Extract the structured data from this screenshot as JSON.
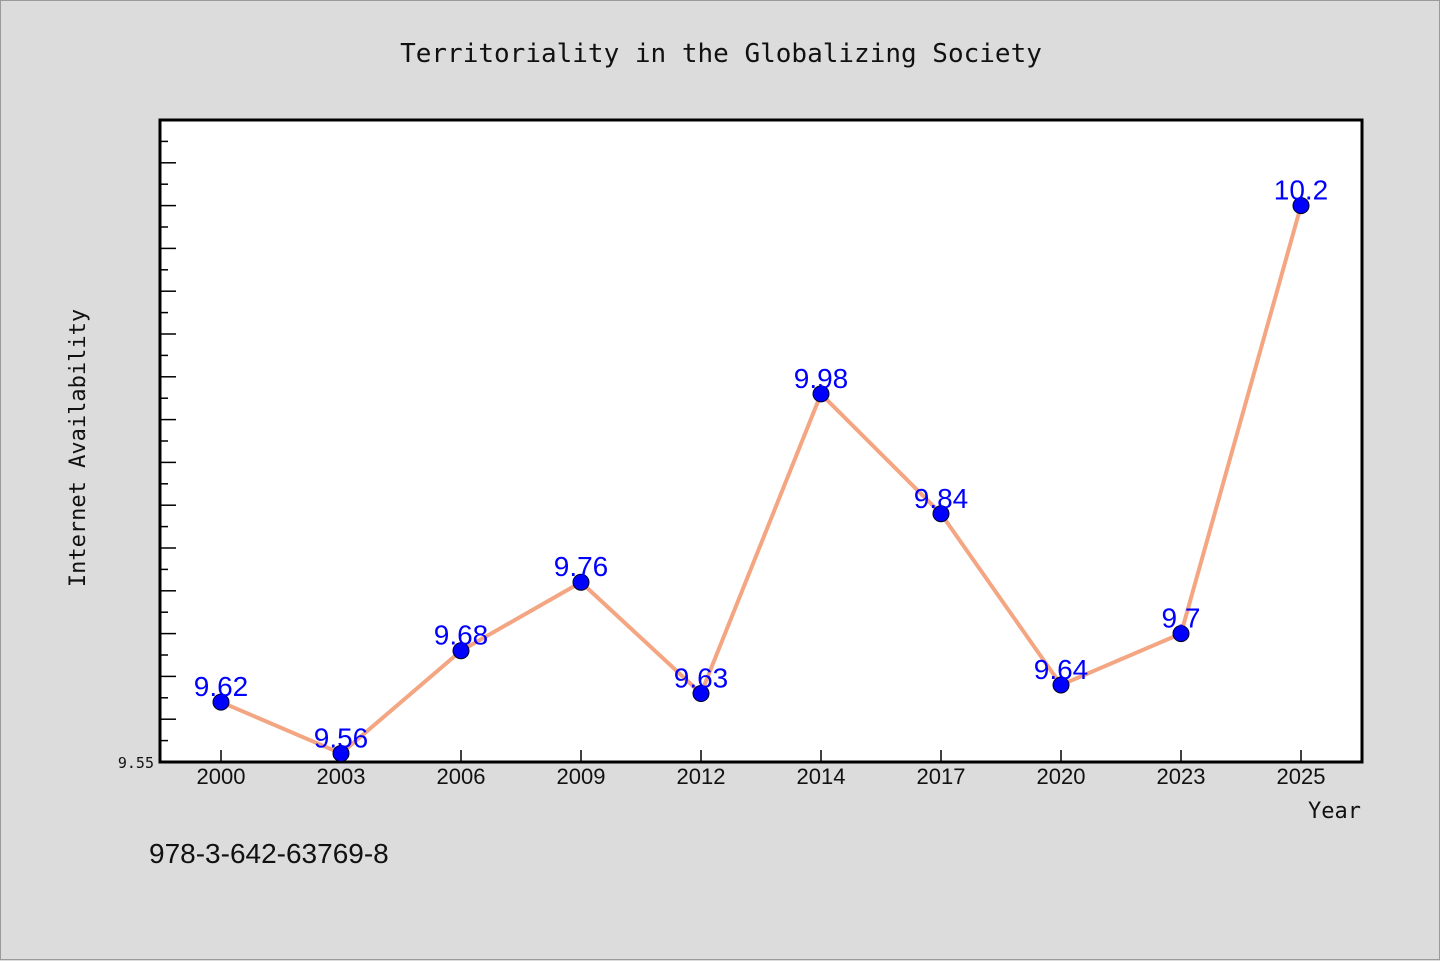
{
  "chart_data": {
    "type": "line",
    "title": "Territoriality in the Globalizing Society",
    "xlabel": "Year",
    "ylabel": "Internet Availability",
    "categories": [
      "2000",
      "2003",
      "2006",
      "2009",
      "2012",
      "2014",
      "2017",
      "2020",
      "2023",
      "2025"
    ],
    "series": [
      {
        "values": [
          9.62,
          9.56,
          9.68,
          9.76,
          9.63,
          9.98,
          9.84,
          9.64,
          9.7,
          10.2
        ],
        "data_labels": [
          "9.62",
          "9.56",
          "9.68",
          "9.76",
          "9.63",
          "9.98",
          "9.84",
          "9.64",
          "9.7",
          "10.2"
        ]
      }
    ],
    "ylim": [
      9.55,
      10.3
    ],
    "yticks_labeled": [
      "9.55"
    ],
    "grid": false,
    "line_color": "#f4a582",
    "marker_color": "#0000ff",
    "label_color": "#0000ff"
  },
  "footer": {
    "isbn": "978-3-642-63769-8"
  }
}
